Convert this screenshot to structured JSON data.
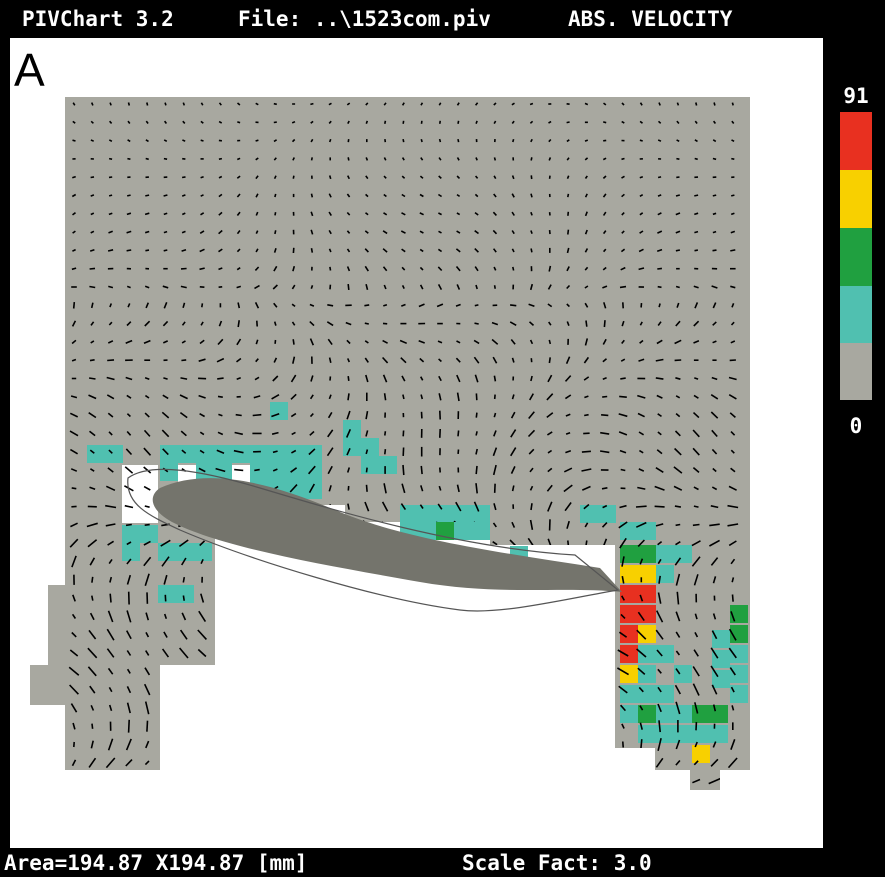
{
  "header": {
    "app": "PIVChart 3.2",
    "file": "File: ..\\1523com.piv",
    "mode": "ABS. VELOCITY"
  },
  "panel_label": "A",
  "colorbar": {
    "max": "91",
    "min": "0"
  },
  "footer": {
    "area": "Area=194.87 X194.87 [mm]",
    "scale": "Scale Fact: 3.0"
  }
}
